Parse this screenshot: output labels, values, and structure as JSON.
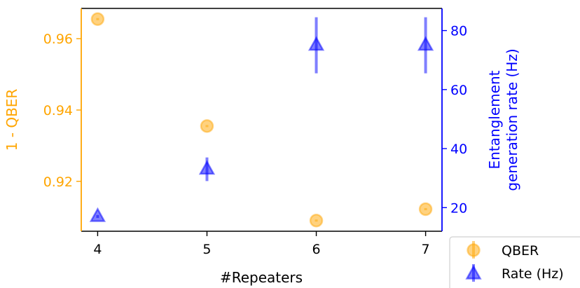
{
  "chart_data": {
    "type": "scatter",
    "x": [
      4,
      5,
      6,
      7
    ],
    "xlabel": "#Repeaters",
    "x_ticks": [
      "4",
      "5",
      "6",
      "7"
    ],
    "xlim": [
      3.85,
      7.15
    ],
    "left_axis": {
      "label": "1 - QBER",
      "color": "#FFA500",
      "ylim": [
        0.906,
        0.9685
      ],
      "ticks": [
        0.92,
        0.94,
        0.96
      ],
      "tick_labels": [
        "0.92",
        "0.94",
        "0.96"
      ]
    },
    "right_axis": {
      "label_line1": "Entanglement",
      "label_line2": "generation rate (Hz)",
      "color": "#0000FF",
      "ylim": [
        12,
        87.5
      ],
      "ticks": [
        20,
        40,
        60,
        80
      ],
      "tick_labels": [
        "20",
        "40",
        "60",
        "80"
      ]
    },
    "series": [
      {
        "name": "QBER",
        "axis": "left",
        "marker": "circle",
        "color": "#FFA500",
        "values": [
          0.9655,
          0.9355,
          0.909,
          0.9122
        ],
        "errors": [
          0.0003,
          0.0003,
          0.0003,
          0.0003
        ]
      },
      {
        "name": "Rate (Hz)",
        "axis": "right",
        "marker": "triangle",
        "color": "#0000FF",
        "values": [
          17,
          33,
          75,
          75
        ],
        "errors": [
          0.5,
          4,
          9.5,
          9.5
        ]
      }
    ],
    "legend_position": "lower-right",
    "grid": false
  }
}
